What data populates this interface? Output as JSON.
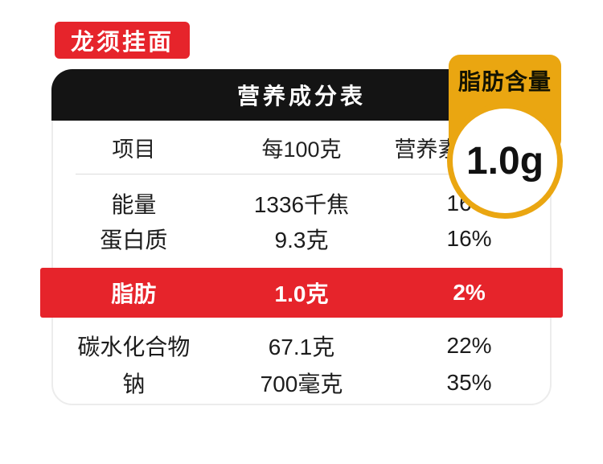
{
  "product": {
    "title_badge": "龙须挂面"
  },
  "fat_badge": {
    "title": "脂肪含量",
    "value": "1.0g"
  },
  "chart_data": {
    "type": "table",
    "title": "营养成分表",
    "columns": [
      "项目",
      "每100克",
      "营养素参考值%"
    ],
    "rows": [
      [
        "能量",
        "1336千焦",
        "16%"
      ],
      [
        "蛋白质",
        "9.3克",
        "16%"
      ],
      [
        "脂肪",
        "1.0克",
        "2%"
      ],
      [
        "碳水化合物",
        "67.1克",
        "22%"
      ],
      [
        "钠",
        "700毫克",
        "35%"
      ]
    ],
    "highlighted_row_index": 2,
    "legend_position": "none",
    "notes": "fat row highlighted in red; black title header bar"
  },
  "colors": {
    "red": "#e6242b",
    "gold": "#eaa611",
    "header_black": "#141414",
    "border_gray": "#ececec"
  }
}
